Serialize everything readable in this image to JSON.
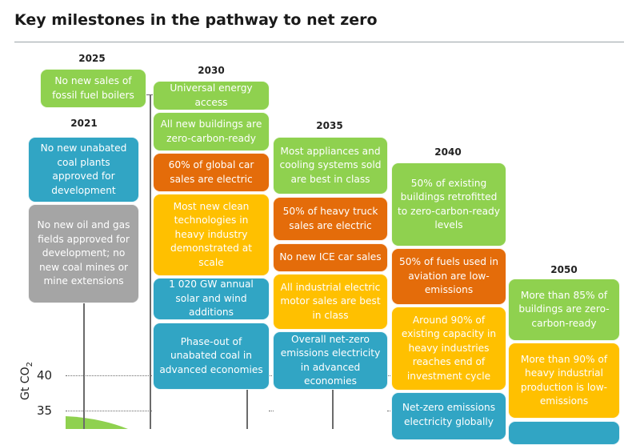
{
  "title": "Key milestones in the pathway to net zero",
  "y_axis": {
    "label": "Gt CO",
    "label_sub": "2",
    "ticks": [
      "40",
      "35"
    ]
  },
  "years": {
    "y2021": "2021",
    "y2025": "2025",
    "y2030": "2030",
    "y2035": "2035",
    "y2040": "2040",
    "y2050": "2050"
  },
  "milestones": {
    "m2025_boilers": "No new sales of fossil fuel boilers",
    "m2021_coal_plants": "No new unabated coal plants approved for development",
    "m2021_oil_gas": "No new oil and gas fields approved for development; no new coal mines or mine extensions",
    "m2030_energy_access": "Universal energy access",
    "m2030_buildings": "All new buildings are zero-carbon-ready",
    "m2030_car_sales": "60% of global car sales are electric",
    "m2030_clean_tech": "Most new clean technologies in heavy industry demonstrated at scale",
    "m2030_solar_wind": "1 020 GW annual solar and wind additions",
    "m2030_coal_phaseout": "Phase-out of unabated coal in advanced economies",
    "m2035_appliances": "Most appliances and cooling systems sold are best in class",
    "m2035_heavy_truck": "50% of heavy truck sales are electric",
    "m2035_ice": "No new ICE car sales",
    "m2035_motors": "All industrial electric motor sales are best in class",
    "m2035_electricity": "Overall net-zero emissions electricity in advanced economies",
    "m2040_retrofit": "50% of existing buildings retrofitted to zero-carbon-ready levels",
    "m2040_aviation": "50% of fuels used in aviation are low-emissions",
    "m2040_industry_capacity": "Around 90% of existing capacity in heavy industries reaches end of investment cycle",
    "m2040_electricity_global": "Net-zero emissions electricity globally",
    "m2050_buildings": "More than 85% of buildings are zero-carbon-ready",
    "m2050_industry": "More than 90% of heavy industrial production is low-emissions"
  },
  "colors": {
    "green": "#8fd14f",
    "orange": "#e46c0a",
    "yellow": "#ffc000",
    "blue": "#31a5c4",
    "grey": "#a5a5a5"
  }
}
